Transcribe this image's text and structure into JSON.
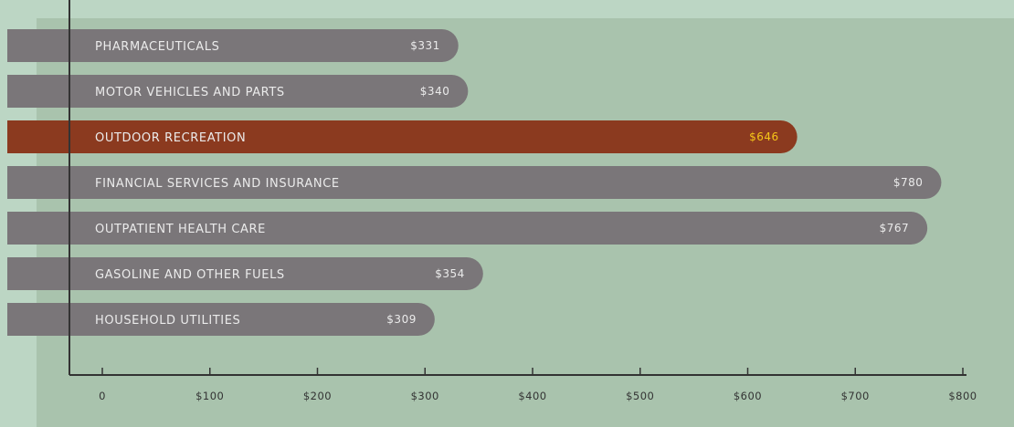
{
  "colors": {
    "page_background": "#bcd6c4",
    "plot_background": "#a9c3ad",
    "bar_default": "#7a7679",
    "bar_highlight": "#8b3a1f",
    "label_text": "#ebebeb",
    "highlight_value_text": "#f5c518",
    "axis": "#333333"
  },
  "chart_data": {
    "type": "bar",
    "orientation": "horizontal",
    "title": "",
    "xlabel": "",
    "ylabel": "",
    "xlim": [
      0,
      800
    ],
    "grid": false,
    "legend": "none",
    "categories": [
      "PHARMACEUTICALS",
      "MOTOR VEHICLES AND PARTS",
      "OUTDOOR RECREATION",
      "FINANCIAL SERVICES AND INSURANCE",
      "OUTPATIENT HEALTH CARE",
      "GASOLINE AND OTHER FUELS",
      "HOUSEHOLD UTILITIES"
    ],
    "values": [
      331,
      340,
      646,
      780,
      767,
      354,
      309
    ],
    "value_labels": [
      "$331",
      "$340",
      "$646",
      "$780",
      "$767",
      "$354",
      "$309"
    ],
    "highlight_category": "OUTDOOR RECREATION",
    "x_ticks": [
      0,
      100,
      200,
      300,
      400,
      500,
      600,
      700,
      800
    ],
    "x_tick_labels": [
      "0",
      "$100",
      "$200",
      "$300",
      "$400",
      "$500",
      "$600",
      "$700",
      "$800"
    ]
  }
}
